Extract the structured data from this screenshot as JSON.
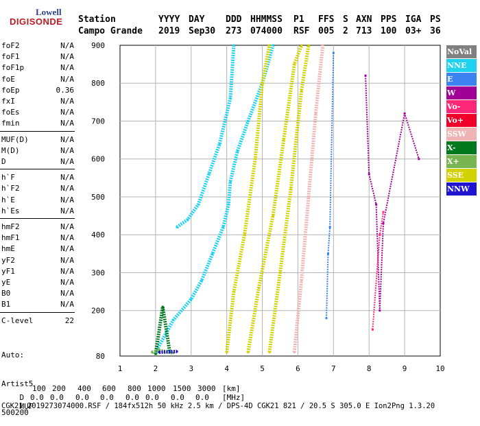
{
  "logo": {
    "top": "Lowell",
    "bottom": "DIGISONDE"
  },
  "header": {
    "labels": [
      "Station",
      "YYYY",
      "DAY",
      "DDD",
      "HHMMSS",
      "P1",
      "FFS",
      "S",
      "AXN",
      "PPS",
      "IGA",
      "PS"
    ],
    "values": [
      "Campo Grande",
      "2019",
      "Sep30",
      "273",
      "074000",
      "RSF",
      "005",
      "2",
      "713",
      "100",
      "03+",
      "36"
    ]
  },
  "params": [
    {
      "name": "foF2",
      "value": "N/A"
    },
    {
      "name": "foF1",
      "value": "N/A"
    },
    {
      "name": "foF1p",
      "value": "N/A"
    },
    {
      "name": "foE",
      "value": "N/A"
    },
    {
      "name": "foEp",
      "value": "0.36"
    },
    {
      "name": "fxI",
      "value": "N/A"
    },
    {
      "name": "foEs",
      "value": "N/A"
    },
    {
      "name": "fmin",
      "value": "N/A"
    },
    {
      "name": "MUF(D)",
      "value": "N/A"
    },
    {
      "name": "M(D)",
      "value": "N/A"
    },
    {
      "name": "D",
      "value": "N/A"
    },
    {
      "name": "h`F",
      "value": "N/A"
    },
    {
      "name": "h`F2",
      "value": "N/A"
    },
    {
      "name": "h`E",
      "value": "N/A"
    },
    {
      "name": "h`Es",
      "value": "N/A"
    },
    {
      "name": "hmF2",
      "value": "N/A"
    },
    {
      "name": "hmF1",
      "value": "N/A"
    },
    {
      "name": "hmE",
      "value": "N/A"
    },
    {
      "name": "yF2",
      "value": "N/A"
    },
    {
      "name": "yF1",
      "value": "N/A"
    },
    {
      "name": "yE",
      "value": "N/A"
    },
    {
      "name": "B0",
      "value": "N/A"
    },
    {
      "name": "B1",
      "value": "N/A"
    },
    {
      "name": "C-level",
      "value": "22"
    }
  ],
  "autoscale": {
    "line1": "Auto:",
    "line2": "Artist5",
    "line3": "500200"
  },
  "legend": [
    {
      "label": "NoVal",
      "color": "#808080"
    },
    {
      "label": "NNE",
      "color": "#1ed2f0"
    },
    {
      "label": "E",
      "color": "#3c82f0"
    },
    {
      "label": "W",
      "color": "#a00096"
    },
    {
      "label": "Vo-",
      "color": "#ff2878"
    },
    {
      "label": "Vo+",
      "color": "#f00028"
    },
    {
      "label": "SSW",
      "color": "#f0b4b4"
    },
    {
      "label": "X-",
      "color": "#00781e"
    },
    {
      "label": "X+",
      "color": "#78b450"
    },
    {
      "label": "SSE",
      "color": "#d2d200"
    },
    {
      "label": "NNW",
      "color": "#1e14d2"
    }
  ],
  "footer": {
    "d_label": "D",
    "d_values": [
      "100",
      "200",
      "400",
      "600",
      "800",
      "1000",
      "1500",
      "3000"
    ],
    "d_unit": "[km]",
    "muf_label": "MUF",
    "muf_values": [
      "0.0",
      "0.0",
      "0.0",
      "0.0",
      "0.0",
      "0.0",
      "0.0",
      "0.0"
    ],
    "muf_unit": "[MHz]",
    "info": "CGK21_2019273074000.RSF / 184fx512h 50 kHz 2.5 km / DPS-4D CGK21 821 / 20.5 S 305.0 E Ion2Png 1.3.20"
  },
  "chart_data": {
    "type": "scatter",
    "xlim": [
      1,
      10
    ],
    "ylim": [
      80,
      900
    ],
    "xticks": [
      "1",
      "2",
      "3",
      "4",
      "5",
      "6",
      "7",
      "8",
      "9",
      "10"
    ],
    "yticks": [
      "80",
      "200",
      "300",
      "400",
      "500",
      "600",
      "700",
      "800",
      "900"
    ],
    "grid": true,
    "traces": [
      {
        "name": "NNE",
        "color": "#1ed2f0",
        "x": [
          2.0,
          2.5,
          3.0,
          3.3,
          3.6,
          3.9,
          4.05,
          4.1,
          4.3,
          4.6,
          5.0,
          5.3
        ],
        "y": [
          90,
          175,
          230,
          280,
          350,
          420,
          480,
          540,
          620,
          700,
          800,
          900
        ]
      },
      {
        "name": "NNE",
        "color": "#1ed2f0",
        "x": [
          2.6,
          2.9,
          3.2,
          3.5,
          3.8,
          4.1,
          4.2
        ],
        "y": [
          420,
          440,
          480,
          560,
          640,
          760,
          900
        ]
      },
      {
        "name": "SSE",
        "color": "#d2d200",
        "x": [
          4.0,
          4.2,
          4.5,
          4.8,
          5.0,
          5.2
        ],
        "y": [
          90,
          250,
          400,
          600,
          800,
          900
        ]
      },
      {
        "name": "SSE",
        "color": "#d2d200",
        "x": [
          4.6,
          4.9,
          5.3,
          5.6,
          5.9,
          6.1
        ],
        "y": [
          90,
          260,
          450,
          650,
          850,
          900
        ]
      },
      {
        "name": "SSE",
        "color": "#d2d200",
        "x": [
          5.2,
          5.5,
          5.8,
          6.1,
          6.3
        ],
        "y": [
          90,
          300,
          520,
          780,
          900
        ]
      },
      {
        "name": "SSW",
        "color": "#f0b4b4",
        "x": [
          5.9,
          6.1,
          6.3,
          6.5,
          6.7
        ],
        "y": [
          90,
          280,
          500,
          720,
          900
        ]
      },
      {
        "name": "E",
        "color": "#3c82f0",
        "x": [
          6.8,
          6.85,
          6.9,
          7.0
        ],
        "y": [
          180,
          350,
          420,
          880
        ]
      },
      {
        "name": "W",
        "color": "#a00096",
        "x": [
          7.9,
          8.0,
          8.2,
          8.3,
          8.4,
          9.0,
          9.4
        ],
        "y": [
          820,
          560,
          480,
          200,
          430,
          720,
          600
        ]
      },
      {
        "name": "Vo-",
        "color": "#ff2878",
        "x": [
          8.1,
          8.3,
          8.4
        ],
        "y": [
          150,
          400,
          460
        ]
      },
      {
        "name": "X-",
        "color": "#00781e",
        "x": [
          2.0,
          2.2,
          2.4
        ],
        "y": [
          85,
          210,
          90
        ]
      },
      {
        "name": "X+",
        "color": "#78b450",
        "x": [
          1.9,
          2.1,
          2.5
        ],
        "y": [
          90,
          95,
          88
        ]
      },
      {
        "name": "NNW",
        "color": "#1e14d2",
        "x": [
          2.1,
          2.6
        ],
        "y": [
          90,
          92
        ]
      }
    ]
  }
}
